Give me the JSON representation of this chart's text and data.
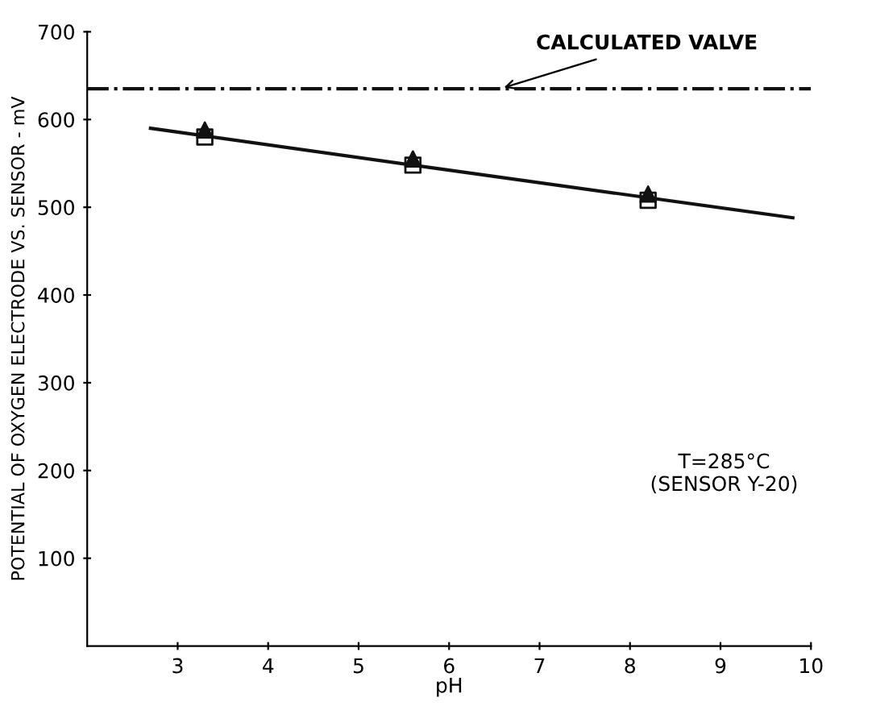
{
  "chart_data": {
    "type": "scatter",
    "xlabel": "pH",
    "ylabel": "POTENTIAL OF OXYGEN ELECTRODE VS. SENSOR - mV",
    "series": [
      {
        "type": "line",
        "color": "#111111",
        "x": [
          2.7,
          5.6,
          9.8
        ],
        "values": [
          590,
          548,
          488
        ],
        "marker": "none",
        "line_style": "solid"
      },
      {
        "color": "#111111",
        "x": [
          3.3,
          5.6,
          8.2
        ],
        "values": [
          588,
          555,
          515
        ],
        "marker": "triangle"
      },
      {
        "color": "#111111",
        "x": [
          3.3,
          5.6,
          8.2
        ],
        "values": [
          580,
          548,
          508
        ],
        "marker": "square"
      }
    ],
    "xlim": [
      2,
      10
    ],
    "xticks": [
      3,
      4,
      5,
      6,
      7,
      8,
      9,
      10
    ],
    "ylim": [
      0,
      700
    ],
    "yticks": [
      100,
      200,
      300,
      400,
      500,
      600,
      700
    ],
    "ref_lines": [
      {
        "axis": "y",
        "value": 635,
        "label": "CALCULATED VALVE",
        "line_style": "dashdot",
        "color": "#111111"
      }
    ],
    "annotations": [
      "T=285°C\n(SENSOR Y-20)"
    ],
    "grid": false,
    "legend": false
  }
}
